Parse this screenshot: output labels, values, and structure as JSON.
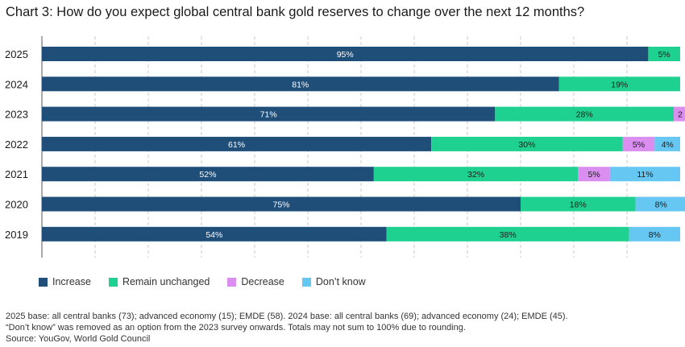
{
  "chart_data": {
    "type": "bar",
    "orientation": "horizontal",
    "stacked": true,
    "title": "Chart 3: How do you expect global central bank gold reserves to change over the next 12 months?",
    "categories": [
      "2025",
      "2024",
      "2023",
      "2022",
      "2021",
      "2020",
      "2019"
    ],
    "series": [
      {
        "name": "Increase",
        "color": "#1f4e79",
        "values": [
          95,
          81,
          71,
          61,
          52,
          75,
          54
        ],
        "labels": [
          "95%",
          "81%",
          "71%",
          "61%",
          "52%",
          "75%",
          "54%"
        ]
      },
      {
        "name": "Remain unchanged",
        "color": "#1fd190",
        "values": [
          5,
          19,
          28,
          30,
          32,
          18,
          38
        ],
        "labels": [
          "5%",
          "19%",
          "28%",
          "30%",
          "32%",
          "18%",
          "38%"
        ]
      },
      {
        "name": "Decrease",
        "color": "#d98ef0",
        "values": [
          0,
          0,
          2,
          5,
          5,
          0,
          0
        ],
        "labels": [
          "",
          "",
          "2",
          "5%",
          "5%",
          "",
          ""
        ]
      },
      {
        "name": "Don’t know",
        "color": "#66c7f2",
        "values": [
          0,
          0,
          0,
          4,
          11,
          8,
          8
        ],
        "labels": [
          "",
          "",
          "",
          "4%",
          "11%",
          "8%",
          "8%"
        ]
      }
    ],
    "xlim": [
      0,
      100
    ],
    "grid": true,
    "legend_position": "bottom-left"
  },
  "footnotes": {
    "line1": "2025 base: all central banks (73); advanced economy (15); EMDE (58). 2024 base: all central banks (69); advanced economy (24); EMDE (45).",
    "line2": "“Don’t know” was removed as an option from the 2023 survey onwards. Totals may not sum to 100% due to rounding.",
    "source": "Source: YouGov, World Gold Council"
  }
}
